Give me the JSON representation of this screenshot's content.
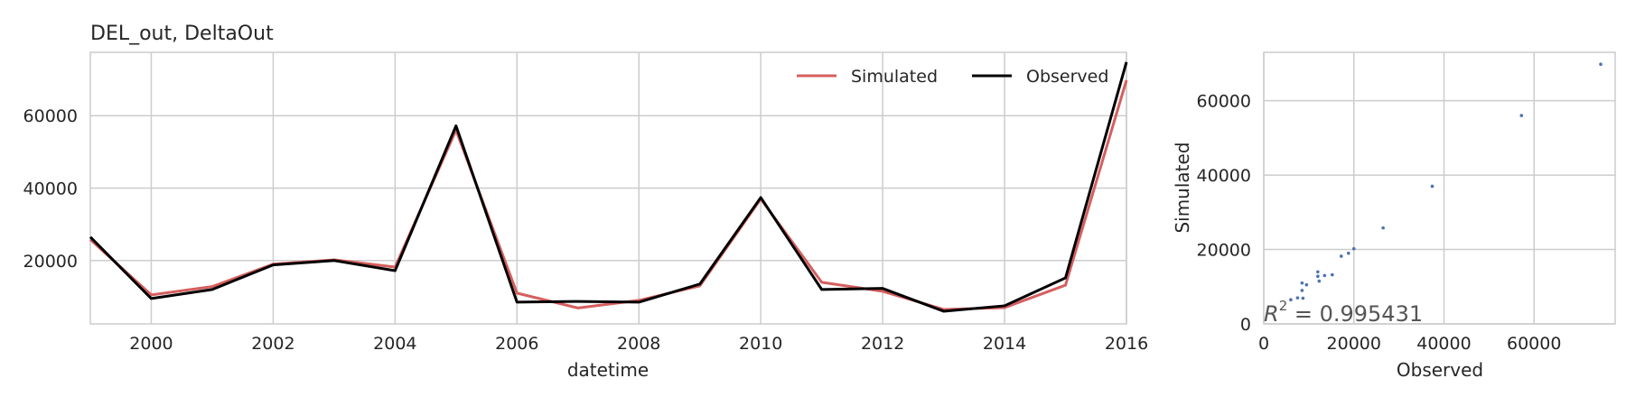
{
  "chart_data": [
    {
      "type": "line",
      "title": "DEL_out, DeltaOut",
      "xlabel": "datetime",
      "ylabel": "",
      "xlim": [
        1999,
        2016
      ],
      "ylim": [
        2500,
        77500
      ],
      "x": [
        1999,
        2000,
        2001,
        2002,
        2003,
        2004,
        2005,
        2006,
        2007,
        2008,
        2009,
        2010,
        2011,
        2012,
        2013,
        2014,
        2015,
        2016
      ],
      "x_ticks": [
        "2000",
        "2002",
        "2004",
        "2006",
        "2008",
        "2010",
        "2012",
        "2014",
        "2016"
      ],
      "y_ticks": [
        "20000",
        "40000",
        "60000"
      ],
      "grid": true,
      "legend_position": "top-right",
      "series": [
        {
          "name": "Simulated",
          "color": "#d65f5f",
          "values": [
            25800,
            10500,
            12800,
            19000,
            20200,
            18200,
            56000,
            11000,
            6900,
            9000,
            13000,
            37000,
            14000,
            11500,
            6500,
            7000,
            13200,
            69800
          ]
        },
        {
          "name": "Observed",
          "color": "#000000",
          "values": [
            26500,
            9500,
            12000,
            18800,
            20000,
            17200,
            57200,
            8500,
            8700,
            8500,
            13500,
            37400,
            12000,
            12300,
            6000,
            7500,
            15200,
            74800
          ]
        }
      ]
    },
    {
      "type": "scatter",
      "xlabel": "Observed",
      "ylabel": "Simulated",
      "xlim": [
        0,
        78000
      ],
      "ylim": [
        0,
        73000
      ],
      "x_ticks": [
        "0",
        "20000",
        "40000",
        "60000"
      ],
      "y_ticks": [
        "0",
        "20000",
        "40000",
        "60000"
      ],
      "grid": true,
      "color": "#4c72b0",
      "annotation_prefix": "R",
      "annotation_sup": "2",
      "annotation_value": " = 0.995431",
      "points": [
        {
          "x": 26500,
          "y": 25800
        },
        {
          "x": 9500,
          "y": 10500
        },
        {
          "x": 12000,
          "y": 12800
        },
        {
          "x": 18800,
          "y": 19000
        },
        {
          "x": 20000,
          "y": 20200
        },
        {
          "x": 17200,
          "y": 18200
        },
        {
          "x": 57200,
          "y": 56000
        },
        {
          "x": 8500,
          "y": 11000
        },
        {
          "x": 8700,
          "y": 6900
        },
        {
          "x": 8500,
          "y": 9000
        },
        {
          "x": 13500,
          "y": 13000
        },
        {
          "x": 37400,
          "y": 37000
        },
        {
          "x": 12000,
          "y": 14000
        },
        {
          "x": 12300,
          "y": 11500
        },
        {
          "x": 6000,
          "y": 6500
        },
        {
          "x": 7500,
          "y": 7000
        },
        {
          "x": 15200,
          "y": 13200
        },
        {
          "x": 74800,
          "y": 69800
        }
      ]
    }
  ]
}
